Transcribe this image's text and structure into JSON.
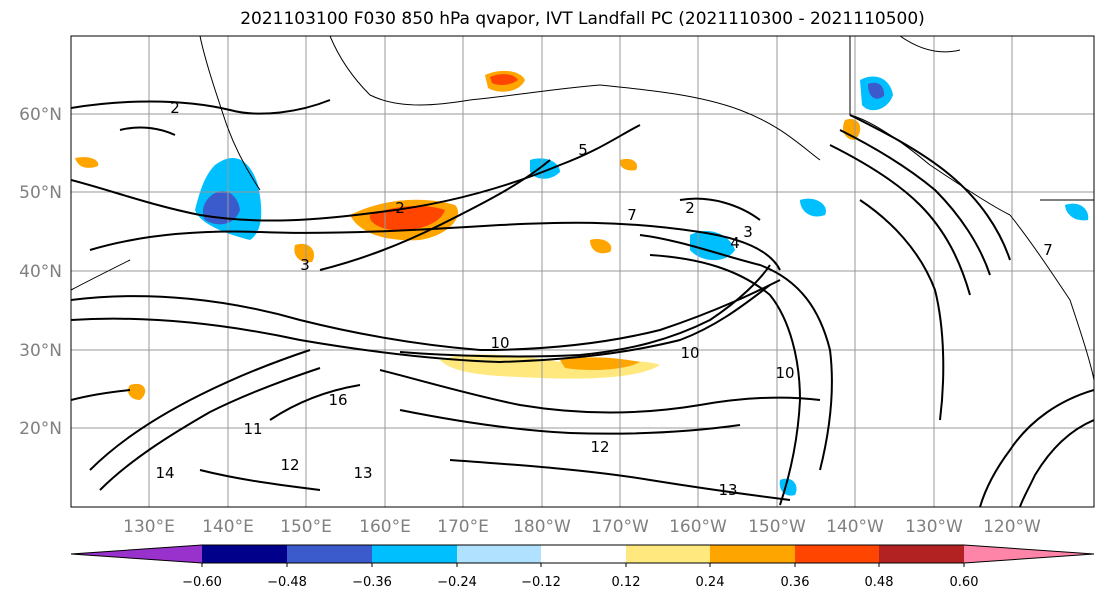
{
  "title": "2021103100 F030 850 hPa qvapor, IVT Landfall PC (2021110300 - 2021110500)",
  "lat_labels": [
    "60°N",
    "50°N",
    "40°N",
    "30°N",
    "20°N"
  ],
  "lon_labels": [
    "130°E",
    "140°E",
    "150°E",
    "160°E",
    "170°E",
    "180°W",
    "170°W",
    "160°W",
    "150°W",
    "140°W",
    "130°W",
    "120°W"
  ],
  "colorbar": {
    "colors": [
      "#9932cc",
      "#00008b",
      "#3b5bcc",
      "#00bfff",
      "#b0e2ff",
      "#ffffff",
      "#ffe97f",
      "#ffa500",
      "#ff4500",
      "#b22222",
      "#ff85a8"
    ],
    "tick_labels": [
      "−0.60",
      "−0.48",
      "−0.36",
      "−0.24",
      "−0.12",
      "0.12",
      "0.24",
      "0.36",
      "0.48",
      "0.60"
    ]
  },
  "contour_labels": [
    "2",
    "2",
    "2",
    "3",
    "3",
    "4",
    "5",
    "7",
    "7",
    "10",
    "10",
    "10",
    "11",
    "12",
    "12",
    "13",
    "13",
    "14",
    "16"
  ]
}
